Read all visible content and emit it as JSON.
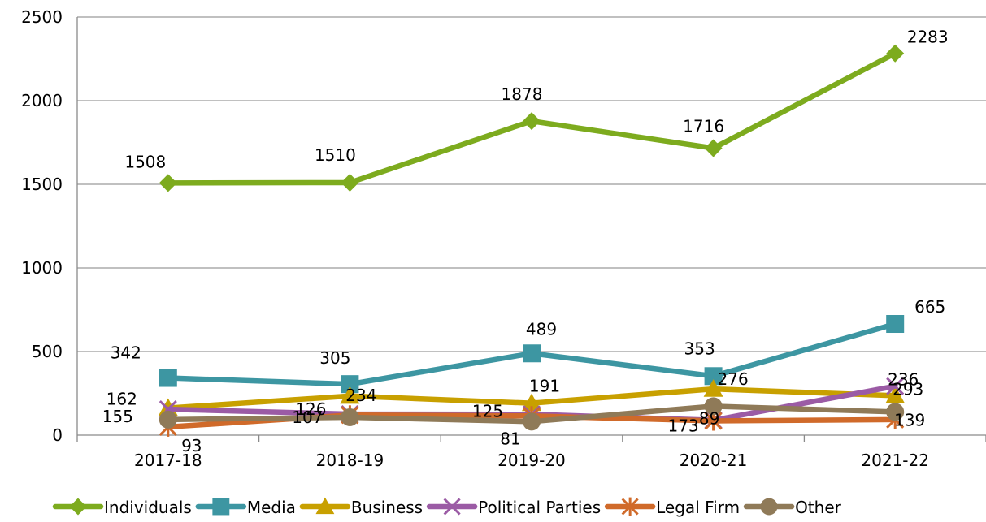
{
  "chart_data": {
    "type": "line",
    "title": "",
    "xlabel": "",
    "ylabel": "",
    "ylim": [
      0,
      2500
    ],
    "yticks": [
      "0",
      "500",
      "1000",
      "1500",
      "2000",
      "2500"
    ],
    "categories": [
      "2017-18",
      "2018-19",
      "2019-20",
      "2020-21",
      "2021-22"
    ],
    "grid": true,
    "legend_position": "bottom",
    "series": [
      {
        "name": "Individuals",
        "color": "#7dab1e",
        "marker": "diamond",
        "values": [
          1508,
          1510,
          1878,
          1716,
          2283
        ],
        "labels": [
          "1508",
          "1510",
          "1878",
          "1716",
          "2283"
        ]
      },
      {
        "name": "Media",
        "color": "#3d96a2",
        "marker": "square",
        "values": [
          342,
          305,
          489,
          353,
          665
        ],
        "labels": [
          "342",
          "305",
          "489",
          "353",
          "665"
        ]
      },
      {
        "name": "Business",
        "color": "#c8a000",
        "marker": "triangle",
        "values": [
          162,
          234,
          191,
          276,
          236
        ],
        "labels": [
          "162",
          "234",
          "191",
          "276",
          "236"
        ]
      },
      {
        "name": "Political Parties",
        "color": "#9b5ba5",
        "marker": "x",
        "values": [
          155,
          126,
          125,
          89,
          293
        ],
        "labels": [
          "155",
          "126",
          "125",
          "89",
          "293"
        ]
      },
      {
        "name": "Legal Firm",
        "color": "#d06a2a",
        "marker": "star",
        "values": [
          49,
          120,
          115,
          85,
          93
        ],
        "labels": [
          "",
          "",
          "",
          "",
          ""
        ]
      },
      {
        "name": "Other",
        "color": "#8f7a58",
        "marker": "circle",
        "values": [
          93,
          107,
          81,
          173,
          139
        ],
        "labels": [
          "93",
          "107",
          "81",
          "173",
          "139"
        ]
      }
    ]
  }
}
